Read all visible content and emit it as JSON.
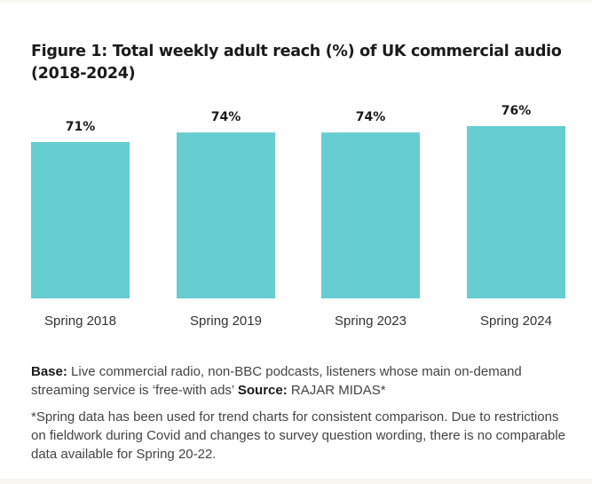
{
  "chart_data": {
    "type": "bar",
    "title": "Figure 1: Total weekly adult reach (%) of UK commercial audio (2018-2024)",
    "categories": [
      "Spring 2018",
      "Spring 2019",
      "Spring 2023",
      "Spring 2024"
    ],
    "values": [
      71,
      74,
      74,
      76
    ],
    "data_labels": [
      "71%",
      "74%",
      "74%",
      "76%"
    ],
    "xlabel": "",
    "ylabel": "",
    "ylim": [
      0,
      100
    ],
    "grid": false,
    "bar_color": "#66cdd0"
  },
  "footer": {
    "base_label": "Base:",
    "base_text": " Live commercial radio, non-BBC podcasts, listeners whose main on-demand streaming service is ‘free-with ads’ ",
    "source_label": "Source:",
    "source_text": " RAJAR MIDAS*",
    "note": "*Spring data has been used for trend charts for consistent comparison. Due to restrictions on fieldwork during Covid and changes to survey question wording, there is no comparable data available for Spring 20-22."
  }
}
